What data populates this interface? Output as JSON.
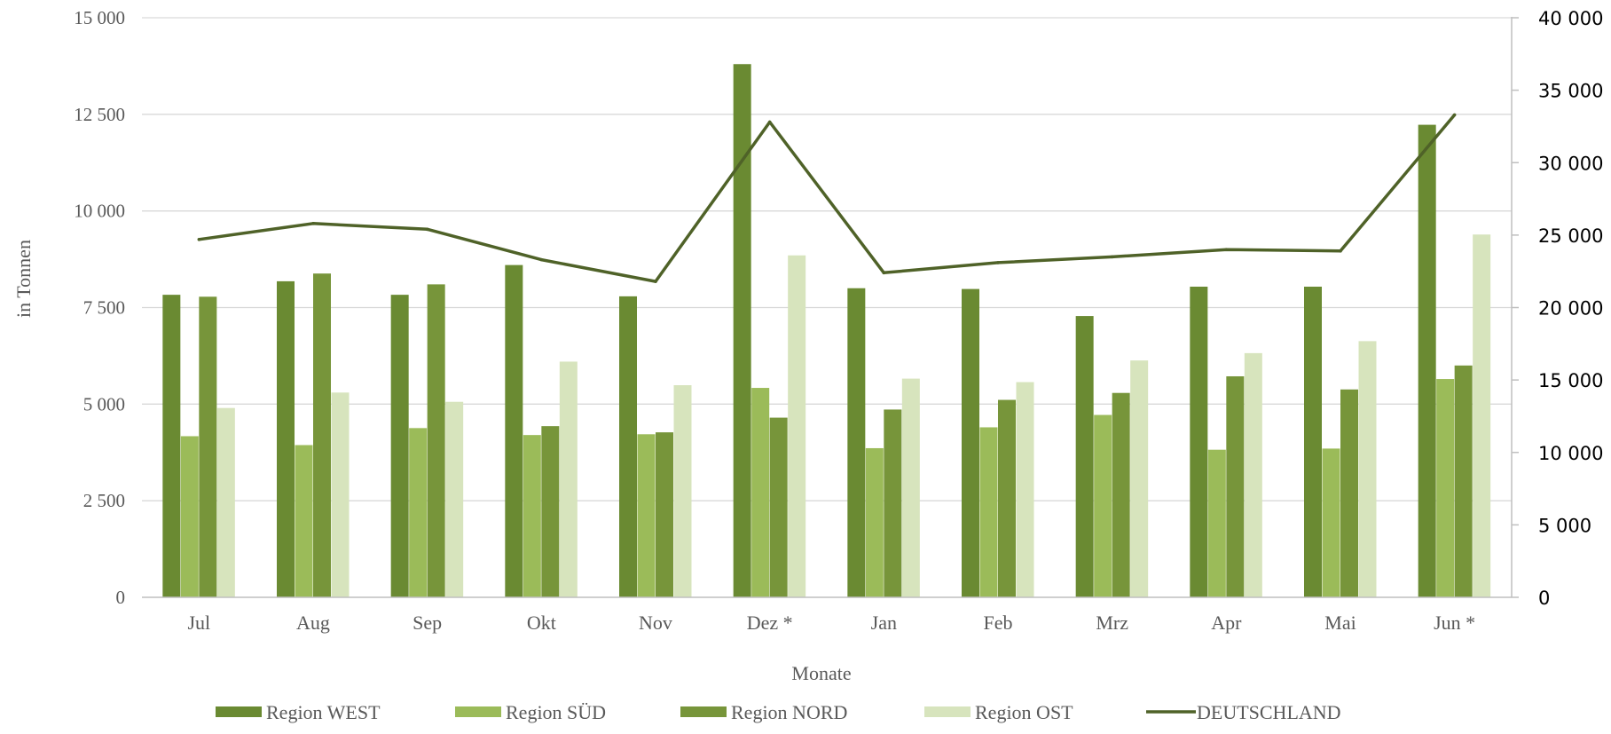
{
  "chart_data": {
    "type": "bar",
    "title": "",
    "xlabel": "Monate",
    "ylabel": "in Tonnen",
    "categories": [
      "Jul",
      "Aug",
      "Sep",
      "Okt",
      "Nov",
      "Dez *",
      "Jan",
      "Feb",
      "Mrz",
      "Apr",
      "Mai",
      "Jun *"
    ],
    "ylim": [
      0,
      15000
    ],
    "y2lim": [
      0,
      40000
    ],
    "yticks": [
      "0",
      "2 500",
      "5 000",
      "7 500",
      "10 000",
      "12 500",
      "15 000"
    ],
    "y2ticks": [
      "0",
      "5 000",
      "10 000",
      "15 000",
      "20 000",
      "25 000",
      "30 000",
      "35 000",
      "40 000"
    ],
    "grid": true,
    "legend_position": "bottom",
    "series": [
      {
        "name": "Region WEST",
        "type": "bar",
        "axis": "left",
        "color": "#6a8a32",
        "values": [
          7830,
          8180,
          7830,
          8600,
          7790,
          13800,
          8000,
          7980,
          7280,
          8040,
          8040,
          12230
        ]
      },
      {
        "name": "Region SÜD",
        "type": "bar",
        "axis": "left",
        "color": "#9bbb59",
        "values": [
          4170,
          3940,
          4380,
          4200,
          4220,
          5420,
          3860,
          4400,
          4720,
          3820,
          3850,
          5650
        ]
      },
      {
        "name": "Region NORD",
        "type": "bar",
        "axis": "left",
        "color": "#77953a",
        "values": [
          7780,
          8380,
          8100,
          4430,
          4270,
          4650,
          4860,
          5110,
          5290,
          5720,
          5380,
          6000
        ]
      },
      {
        "name": "Region OST",
        "type": "bar",
        "axis": "left",
        "color": "#d7e4bd",
        "values": [
          4900,
          5300,
          5060,
          6100,
          5490,
          8850,
          5660,
          5570,
          6130,
          6320,
          6630,
          9390
        ]
      },
      {
        "name": "DEUTSCHLAND",
        "type": "line",
        "axis": "right",
        "color": "#4f6228",
        "values": [
          24700,
          25800,
          25400,
          23300,
          21800,
          32800,
          22400,
          23100,
          23500,
          24000,
          23900,
          33300
        ]
      }
    ]
  }
}
